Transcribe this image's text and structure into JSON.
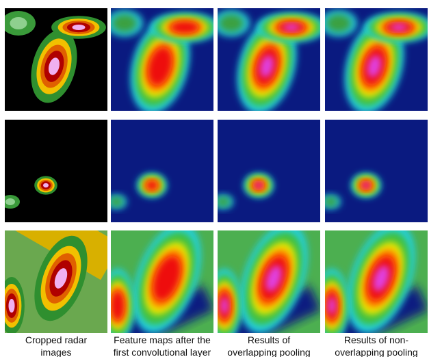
{
  "captions": [
    [
      "Cropped radar",
      "images"
    ],
    [
      "Feature maps after the",
      "first convolutional layer"
    ],
    [
      "Results of",
      "overlapping pooling"
    ],
    [
      "Results of non-",
      "overlapping pooling"
    ]
  ]
}
